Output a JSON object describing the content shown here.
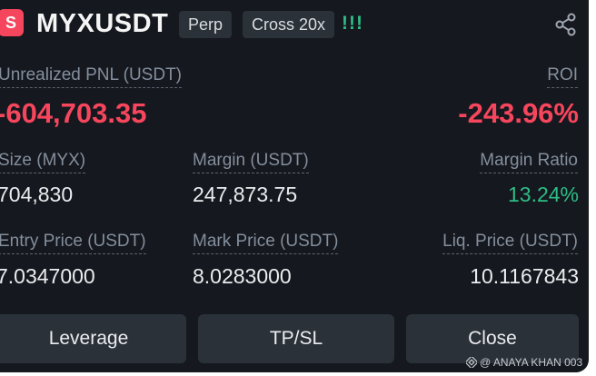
{
  "header": {
    "side_badge": "S",
    "symbol": "MYXUSDT",
    "contract_type": "Perp",
    "margin_mode": "Cross 20x",
    "strength_indicator": "!!!",
    "share_icon": "share-icon"
  },
  "pnl": {
    "unrealized_label": "Unrealized PNL (USDT)",
    "unrealized_value": "-604,703.35",
    "roi_label": "ROI",
    "roi_value": "-243.96%"
  },
  "stats": {
    "size_label": "Size (MYX)",
    "size_value": "704,830",
    "margin_label": "Margin (USDT)",
    "margin_value": "247,873.75",
    "margin_ratio_label": "Margin Ratio",
    "margin_ratio_value": "13.24%",
    "entry_price_label": "Entry Price (USDT)",
    "entry_price_value": "7.0347000",
    "mark_price_label": "Mark Price (USDT)",
    "mark_price_value": "8.0283000",
    "liq_price_label": "Liq. Price (USDT)",
    "liq_price_value": "10.1167843"
  },
  "actions": {
    "leverage": "Leverage",
    "tpsl": "TP/SL",
    "close": "Close"
  },
  "watermark": "@ ANAYA KHAN 003",
  "colors": {
    "background": "#15181e",
    "negative": "#f6465d",
    "positive": "#2ebd85",
    "button_bg": "#2b3139",
    "label": "#848e9c"
  }
}
